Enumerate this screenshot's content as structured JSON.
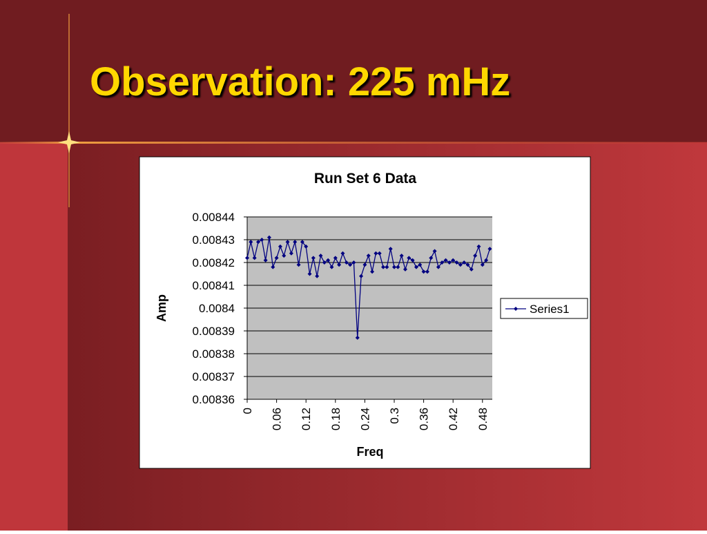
{
  "title": "Observation: 225 mHz",
  "chart_data": {
    "type": "line",
    "title": "Run Set 6 Data",
    "xlabel": "Freq",
    "ylabel": "Amp",
    "x": [
      0,
      0.0075,
      0.015,
      0.0225,
      0.03,
      0.0375,
      0.045,
      0.0525,
      0.06,
      0.0675,
      0.075,
      0.0825,
      0.09,
      0.0975,
      0.105,
      0.1125,
      0.12,
      0.1275,
      0.135,
      0.1425,
      0.15,
      0.1575,
      0.165,
      0.1725,
      0.18,
      0.1875,
      0.195,
      0.2025,
      0.21,
      0.2175,
      0.225,
      0.2325,
      0.24,
      0.2475,
      0.255,
      0.2625,
      0.27,
      0.2775,
      0.285,
      0.2925,
      0.3,
      0.3075,
      0.315,
      0.3225,
      0.33,
      0.3375,
      0.345,
      0.3525,
      0.36,
      0.3675,
      0.375,
      0.3825,
      0.39,
      0.3975,
      0.405,
      0.4125,
      0.42,
      0.4275,
      0.435,
      0.4425,
      0.45,
      0.4575,
      0.465,
      0.4725,
      0.48,
      0.4875,
      0.495
    ],
    "series": [
      {
        "name": "Series1",
        "color": "#000080",
        "values": [
          0.008422,
          0.008429,
          0.008422,
          0.008429,
          0.00843,
          0.008421,
          0.008431,
          0.008418,
          0.008422,
          0.008427,
          0.008423,
          0.008429,
          0.008424,
          0.008429,
          0.008419,
          0.008429,
          0.008427,
          0.008415,
          0.008422,
          0.008414,
          0.008423,
          0.00842,
          0.008421,
          0.008418,
          0.008422,
          0.008419,
          0.008424,
          0.00842,
          0.008419,
          0.00842,
          0.008387,
          0.008414,
          0.008419,
          0.008423,
          0.008416,
          0.008424,
          0.008424,
          0.008418,
          0.008418,
          0.008426,
          0.008418,
          0.008418,
          0.008423,
          0.008417,
          0.008422,
          0.008421,
          0.008418,
          0.008419,
          0.008416,
          0.008416,
          0.008422,
          0.008425,
          0.008418,
          0.00842,
          0.008421,
          0.00842,
          0.008421,
          0.00842,
          0.008419,
          0.00842,
          0.008419,
          0.008417,
          0.008423,
          0.008427,
          0.008419,
          0.008421,
          0.008426
        ]
      }
    ],
    "xlim": [
      0,
      0.5
    ],
    "xticks": [
      0,
      0.06,
      0.12,
      0.18,
      0.24,
      0.3,
      0.36,
      0.42,
      0.48
    ],
    "ylim": [
      0.00836,
      0.00844
    ],
    "yticks": [
      0.00836,
      0.00837,
      0.00838,
      0.00839,
      0.0084,
      0.00841,
      0.00842,
      0.00843,
      0.00844
    ],
    "grid": true,
    "legend": "right"
  }
}
